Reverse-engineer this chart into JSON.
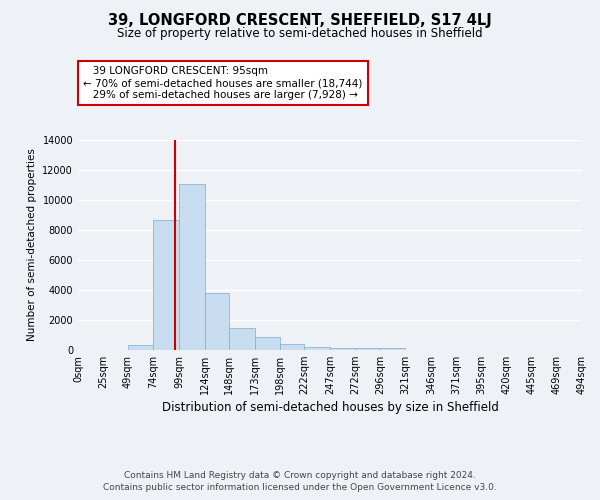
{
  "title": "39, LONGFORD CRESCENT, SHEFFIELD, S17 4LJ",
  "subtitle": "Size of property relative to semi-detached houses in Sheffield",
  "xlabel": "Distribution of semi-detached houses by size in Sheffield",
  "ylabel": "Number of semi-detached properties",
  "property_size": 95,
  "property_label": "39 LONGFORD CRESCENT: 95sqm",
  "pct_smaller": 70,
  "pct_larger": 29,
  "count_smaller": 18744,
  "count_larger": 7928,
  "footnote1": "Contains HM Land Registry data © Crown copyright and database right 2024.",
  "footnote2": "Contains public sector information licensed under the Open Government Licence v3.0.",
  "bin_edges": [
    0,
    25,
    49,
    74,
    99,
    124,
    148,
    173,
    198,
    222,
    247,
    272,
    296,
    321,
    346,
    371,
    395,
    420,
    445,
    469,
    494
  ],
  "bin_labels": [
    "0sqm",
    "25sqm",
    "49sqm",
    "74sqm",
    "99sqm",
    "124sqm",
    "148sqm",
    "173sqm",
    "198sqm",
    "222sqm",
    "247sqm",
    "272sqm",
    "296sqm",
    "321sqm",
    "346sqm",
    "371sqm",
    "395sqm",
    "420sqm",
    "445sqm",
    "469sqm",
    "494sqm"
  ],
  "bar_heights": [
    0,
    0,
    350,
    8700,
    11100,
    3800,
    1500,
    900,
    400,
    200,
    150,
    150,
    150,
    0,
    0,
    0,
    0,
    0,
    0,
    0
  ],
  "bar_color": "#c8ddef",
  "bar_edge_color": "#7aaed0",
  "vline_color": "#cc0000",
  "box_edge_color": "#cc0000",
  "ylim": [
    0,
    14000
  ],
  "yticks": [
    0,
    2000,
    4000,
    6000,
    8000,
    10000,
    12000,
    14000
  ],
  "bg_color": "#eef2f7",
  "grid_color": "#ffffff",
  "title_fontsize": 10.5,
  "subtitle_fontsize": 8.5,
  "annotation_fontsize": 7.5,
  "axis_fontsize": 7,
  "xlabel_fontsize": 8.5,
  "ylabel_fontsize": 7.5,
  "footnote_fontsize": 6.5
}
